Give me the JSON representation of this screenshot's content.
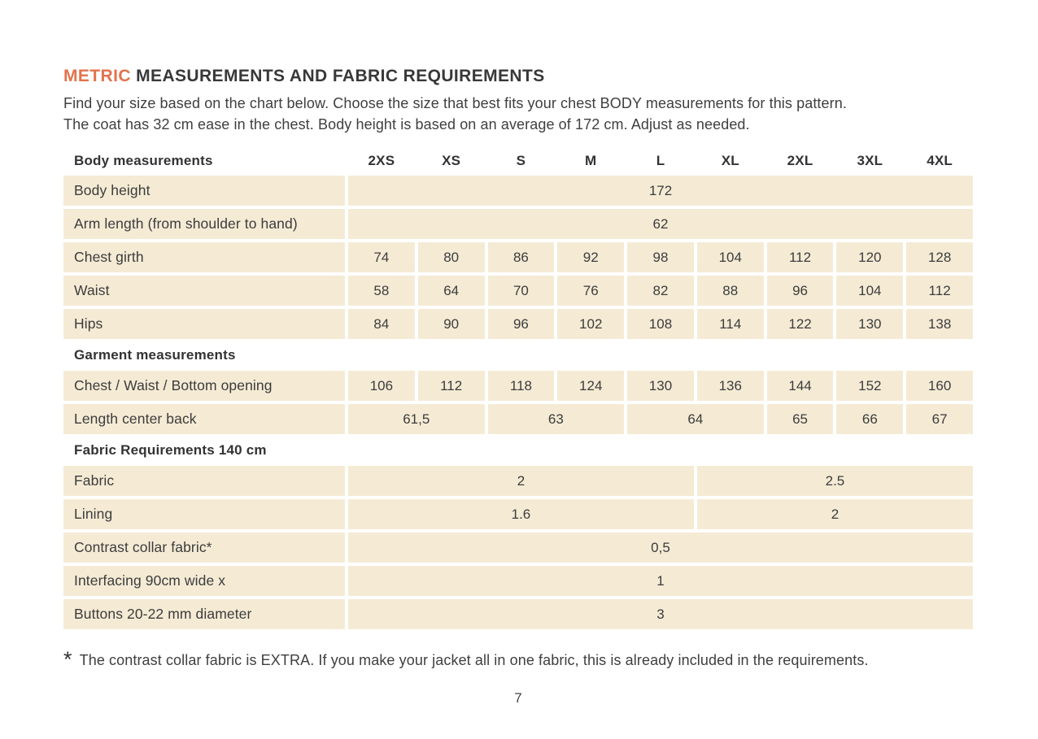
{
  "colors": {
    "accent": "#E2734C",
    "cell_bg": "#F5EBD5",
    "text": "#3C3C3C"
  },
  "header": {
    "title_highlight": "METRIC",
    "title_rest": " MEASUREMENTS AND FABRIC REQUIREMENTS",
    "intro_line1": "Find your size based on the chart below. Choose the size that best fits your chest BODY measurements for this pattern.",
    "intro_line2": "The coat has 32 cm ease in the chest. Body height is based on an average of 172 cm. Adjust as needed."
  },
  "table": {
    "header": {
      "label": "Body measurements",
      "sizes": [
        "2XS",
        "XS",
        "S",
        "M",
        "L",
        "XL",
        "2XL",
        "3XL",
        "4XL"
      ]
    },
    "rows": [
      {
        "type": "data",
        "label": "Body height",
        "cells": [
          {
            "span": 9,
            "value": "172"
          }
        ]
      },
      {
        "type": "data",
        "label": "Arm length (from shoulder to hand)",
        "cells": [
          {
            "span": 9,
            "value": "62"
          }
        ]
      },
      {
        "type": "data",
        "label": "Chest girth",
        "cells": [
          {
            "span": 1,
            "value": "74"
          },
          {
            "span": 1,
            "value": "80"
          },
          {
            "span": 1,
            "value": "86"
          },
          {
            "span": 1,
            "value": "92"
          },
          {
            "span": 1,
            "value": "98"
          },
          {
            "span": 1,
            "value": "104"
          },
          {
            "span": 1,
            "value": "112"
          },
          {
            "span": 1,
            "value": "120"
          },
          {
            "span": 1,
            "value": "128"
          }
        ]
      },
      {
        "type": "data",
        "label": "Waist",
        "cells": [
          {
            "span": 1,
            "value": "58"
          },
          {
            "span": 1,
            "value": "64"
          },
          {
            "span": 1,
            "value": "70"
          },
          {
            "span": 1,
            "value": "76"
          },
          {
            "span": 1,
            "value": "82"
          },
          {
            "span": 1,
            "value": "88"
          },
          {
            "span": 1,
            "value": "96"
          },
          {
            "span": 1,
            "value": "104"
          },
          {
            "span": 1,
            "value": "112"
          }
        ]
      },
      {
        "type": "data",
        "label": "Hips",
        "cells": [
          {
            "span": 1,
            "value": "84"
          },
          {
            "span": 1,
            "value": "90"
          },
          {
            "span": 1,
            "value": "96"
          },
          {
            "span": 1,
            "value": "102"
          },
          {
            "span": 1,
            "value": "108"
          },
          {
            "span": 1,
            "value": "114"
          },
          {
            "span": 1,
            "value": "122"
          },
          {
            "span": 1,
            "value": "130"
          },
          {
            "span": 1,
            "value": "138"
          }
        ]
      },
      {
        "type": "section",
        "label": "Garment measurements"
      },
      {
        "type": "data",
        "label": "Chest / Waist / Bottom opening",
        "cells": [
          {
            "span": 1,
            "value": "106"
          },
          {
            "span": 1,
            "value": "112"
          },
          {
            "span": 1,
            "value": "118"
          },
          {
            "span": 1,
            "value": "124"
          },
          {
            "span": 1,
            "value": "130"
          },
          {
            "span": 1,
            "value": "136"
          },
          {
            "span": 1,
            "value": "144"
          },
          {
            "span": 1,
            "value": "152"
          },
          {
            "span": 1,
            "value": "160"
          }
        ]
      },
      {
        "type": "data",
        "label": "Length center back",
        "cells": [
          {
            "span": 2,
            "value": "61,5"
          },
          {
            "span": 2,
            "value": "63"
          },
          {
            "span": 2,
            "value": "64"
          },
          {
            "span": 1,
            "value": "65"
          },
          {
            "span": 1,
            "value": "66"
          },
          {
            "span": 1,
            "value": "67"
          }
        ]
      },
      {
        "type": "section",
        "label": "Fabric Requirements 140 cm"
      },
      {
        "type": "data",
        "label": "Fabric",
        "cells": [
          {
            "span": 5,
            "value": "2"
          },
          {
            "span": 4,
            "value": "2.5"
          }
        ]
      },
      {
        "type": "data",
        "label": "Lining",
        "cells": [
          {
            "span": 5,
            "value": "1.6"
          },
          {
            "span": 4,
            "value": "2"
          }
        ]
      },
      {
        "type": "data",
        "label": "Contrast collar fabric*",
        "cells": [
          {
            "span": 9,
            "value": "0,5"
          }
        ]
      },
      {
        "type": "data",
        "label": "Interfacing 90cm wide x",
        "cells": [
          {
            "span": 9,
            "value": "1"
          }
        ]
      },
      {
        "type": "data",
        "label": "Buttons 20-22 mm diameter",
        "cells": [
          {
            "span": 9,
            "value": "3"
          }
        ]
      }
    ]
  },
  "footer": {
    "footnote_marker": "*",
    "footnote_text": "The contrast collar fabric is EXTRA. If you make your jacket all in one fabric, this is already included in the requirements.",
    "page_number": "7"
  }
}
